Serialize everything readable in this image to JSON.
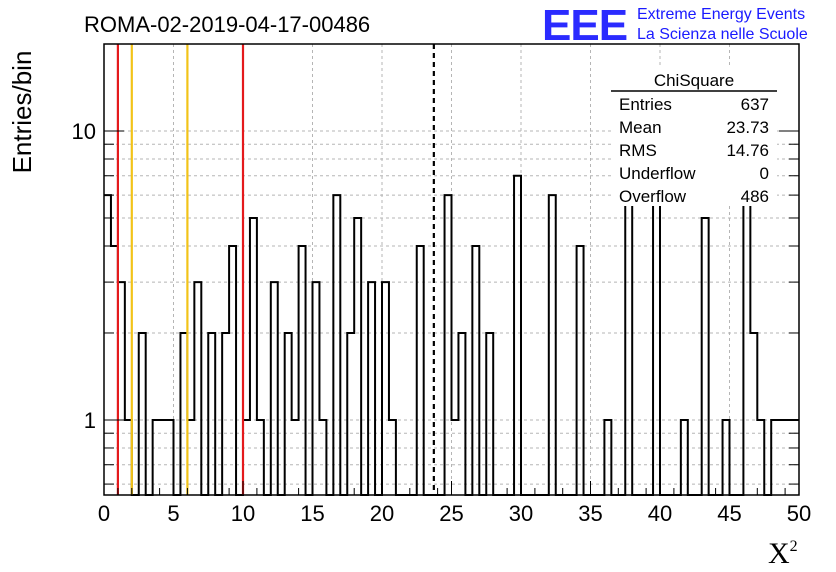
{
  "chart_data": {
    "type": "histogram",
    "title": "ROMA-02-2019-04-17-00486",
    "xlabel": "X",
    "xlabel_superscript": "2",
    "ylabel": "Entries/bin",
    "xlim": [
      0,
      50
    ],
    "ylim": [
      0.55,
      20
    ],
    "yscale": "log",
    "grid": true,
    "bin_width": 0.5,
    "x_ticks": [
      "0",
      "5",
      "10",
      "15",
      "20",
      "25",
      "30",
      "35",
      "40",
      "45",
      "50"
    ],
    "y_ticks": [
      "1",
      "10"
    ],
    "bins": [
      {
        "x0": 0.0,
        "y": 6
      },
      {
        "x0": 0.5,
        "y": 4
      },
      {
        "x0": 1.0,
        "y": 3
      },
      {
        "x0": 1.5,
        "y": 1
      },
      {
        "x0": 2.0,
        "y": 0
      },
      {
        "x0": 2.5,
        "y": 2
      },
      {
        "x0": 3.0,
        "y": 0
      },
      {
        "x0": 3.5,
        "y": 1
      },
      {
        "x0": 4.0,
        "y": 1
      },
      {
        "x0": 4.5,
        "y": 1
      },
      {
        "x0": 5.0,
        "y": 0
      },
      {
        "x0": 5.5,
        "y": 2
      },
      {
        "x0": 6.0,
        "y": 1
      },
      {
        "x0": 6.5,
        "y": 3
      },
      {
        "x0": 7.0,
        "y": 0
      },
      {
        "x0": 7.5,
        "y": 2
      },
      {
        "x0": 8.0,
        "y": 0
      },
      {
        "x0": 8.5,
        "y": 2
      },
      {
        "x0": 9.0,
        "y": 4
      },
      {
        "x0": 9.5,
        "y": 0
      },
      {
        "x0": 10.0,
        "y": 1
      },
      {
        "x0": 10.5,
        "y": 5
      },
      {
        "x0": 11.0,
        "y": 1
      },
      {
        "x0": 11.5,
        "y": 0
      },
      {
        "x0": 12.0,
        "y": 3
      },
      {
        "x0": 12.5,
        "y": 0
      },
      {
        "x0": 13.0,
        "y": 2
      },
      {
        "x0": 13.5,
        "y": 1
      },
      {
        "x0": 14.0,
        "y": 4
      },
      {
        "x0": 14.5,
        "y": 0
      },
      {
        "x0": 15.0,
        "y": 3
      },
      {
        "x0": 15.5,
        "y": 1
      },
      {
        "x0": 16.0,
        "y": 0
      },
      {
        "x0": 16.5,
        "y": 6
      },
      {
        "x0": 17.0,
        "y": 0
      },
      {
        "x0": 17.5,
        "y": 2
      },
      {
        "x0": 18.0,
        "y": 5
      },
      {
        "x0": 18.5,
        "y": 0
      },
      {
        "x0": 19.0,
        "y": 3
      },
      {
        "x0": 19.5,
        "y": 0
      },
      {
        "x0": 20.0,
        "y": 3
      },
      {
        "x0": 20.5,
        "y": 1
      },
      {
        "x0": 21.0,
        "y": 0
      },
      {
        "x0": 21.5,
        "y": 0
      },
      {
        "x0": 22.0,
        "y": 0
      },
      {
        "x0": 22.5,
        "y": 4
      },
      {
        "x0": 23.0,
        "y": 0
      },
      {
        "x0": 23.5,
        "y": 0
      },
      {
        "x0": 24.0,
        "y": 0
      },
      {
        "x0": 24.5,
        "y": 6
      },
      {
        "x0": 25.0,
        "y": 1
      },
      {
        "x0": 25.5,
        "y": 2
      },
      {
        "x0": 26.0,
        "y": 0
      },
      {
        "x0": 26.5,
        "y": 4
      },
      {
        "x0": 27.0,
        "y": 0
      },
      {
        "x0": 27.5,
        "y": 2
      },
      {
        "x0": 28.0,
        "y": 0
      },
      {
        "x0": 28.5,
        "y": 0
      },
      {
        "x0": 29.0,
        "y": 0
      },
      {
        "x0": 29.5,
        "y": 7
      },
      {
        "x0": 30.0,
        "y": 0
      },
      {
        "x0": 30.5,
        "y": 0
      },
      {
        "x0": 31.0,
        "y": 0
      },
      {
        "x0": 31.5,
        "y": 0
      },
      {
        "x0": 32.0,
        "y": 6
      },
      {
        "x0": 32.5,
        "y": 0
      },
      {
        "x0": 33.0,
        "y": 0
      },
      {
        "x0": 33.5,
        "y": 0
      },
      {
        "x0": 34.0,
        "y": 4
      },
      {
        "x0": 34.5,
        "y": 0
      },
      {
        "x0": 35.0,
        "y": 0
      },
      {
        "x0": 35.5,
        "y": 0
      },
      {
        "x0": 36.0,
        "y": 1
      },
      {
        "x0": 36.5,
        "y": 0
      },
      {
        "x0": 37.0,
        "y": 0
      },
      {
        "x0": 37.5,
        "y": 9
      },
      {
        "x0": 38.0,
        "y": 0
      },
      {
        "x0": 38.5,
        "y": 0
      },
      {
        "x0": 39.0,
        "y": 0
      },
      {
        "x0": 39.5,
        "y": 9
      },
      {
        "x0": 40.0,
        "y": 0
      },
      {
        "x0": 40.5,
        "y": 0
      },
      {
        "x0": 41.0,
        "y": 0
      },
      {
        "x0": 41.5,
        "y": 1
      },
      {
        "x0": 42.0,
        "y": 0
      },
      {
        "x0": 42.5,
        "y": 0
      },
      {
        "x0": 43.0,
        "y": 5
      },
      {
        "x0": 43.5,
        "y": 0
      },
      {
        "x0": 44.0,
        "y": 0
      },
      {
        "x0": 44.5,
        "y": 1
      },
      {
        "x0": 45.0,
        "y": 0
      },
      {
        "x0": 45.5,
        "y": 0
      },
      {
        "x0": 46.0,
        "y": 8
      },
      {
        "x0": 46.5,
        "y": 2
      },
      {
        "x0": 47.0,
        "y": 1
      },
      {
        "x0": 47.5,
        "y": 0
      },
      {
        "x0": 48.0,
        "y": 1
      },
      {
        "x0": 48.5,
        "y": 1
      },
      {
        "x0": 49.0,
        "y": 1
      },
      {
        "x0": 49.5,
        "y": 1
      }
    ],
    "vertical_lines": [
      {
        "x": 1.0,
        "color": "#e41a1c",
        "style": "solid"
      },
      {
        "x": 2.0,
        "color": "#f2c318",
        "style": "solid"
      },
      {
        "x": 6.0,
        "color": "#f2c318",
        "style": "solid"
      },
      {
        "x": 10.0,
        "color": "#e41a1c",
        "style": "solid"
      },
      {
        "x": 23.73,
        "color": "#000000",
        "style": "dashed"
      }
    ],
    "stats_box": {
      "title": "ChiSquare",
      "rows": [
        {
          "label": "Entries",
          "value": "637"
        },
        {
          "label": "Mean",
          "value": "23.73"
        },
        {
          "label": "RMS",
          "value": "14.76"
        },
        {
          "label": "Underflow",
          "value": "0"
        },
        {
          "label": "Overflow",
          "value": "486"
        }
      ]
    }
  },
  "logo": {
    "mark": "EEE",
    "line1": "Extreme Energy Events",
    "line2": "La Scienza nelle Scuole"
  }
}
